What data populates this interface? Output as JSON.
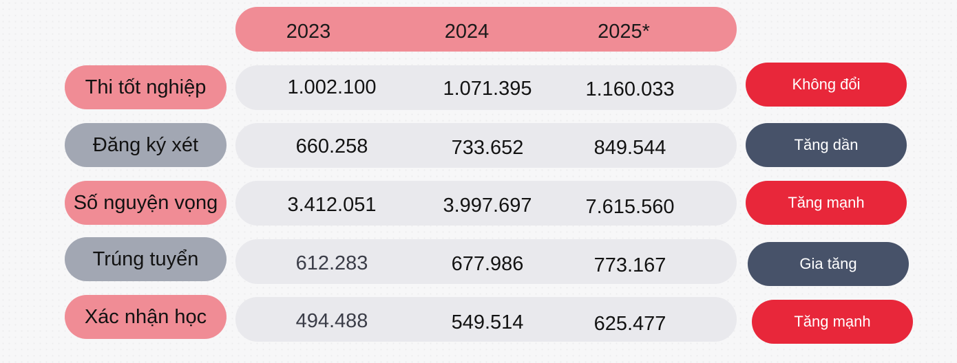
{
  "header": {
    "years": [
      "2023",
      "2024",
      "2025*"
    ]
  },
  "rows": [
    {
      "label": "Thi tốt nghiệp",
      "values": [
        "1.002.100",
        "1.071.395",
        "1.160.033"
      ],
      "status": "Không đổi"
    },
    {
      "label": "Đăng ký xét",
      "values": [
        "660.258",
        "733.652",
        "849.544"
      ],
      "status": "Tăng dần"
    },
    {
      "label": "Số nguyện vọng",
      "values": [
        "3.412.051",
        "3.997.697",
        "7.615.560"
      ],
      "status": "Tăng mạnh"
    },
    {
      "label": "Trúng tuyển",
      "values": [
        "612.283",
        "677.986",
        "773.167"
      ],
      "status": "Gia tăng"
    },
    {
      "label": "Xác nhận học",
      "values": [
        "494.488",
        "549.514",
        "625.477"
      ],
      "status": "Tăng mạnh"
    }
  ],
  "colors": {
    "pink": "#f08c95",
    "gray": "#a2a7b3",
    "red": "#e8273a",
    "slate": "#475269",
    "row_bg": "#e9e9ed"
  }
}
